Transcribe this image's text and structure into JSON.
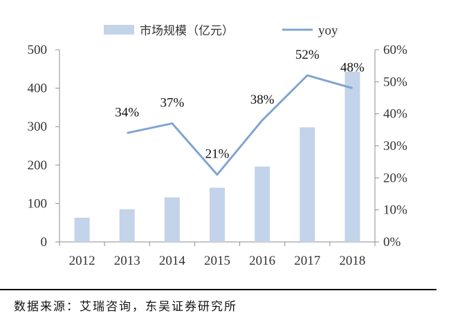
{
  "chart_data": {
    "type": "bar+line",
    "categories": [
      "2012",
      "2013",
      "2014",
      "2015",
      "2016",
      "2017",
      "2018"
    ],
    "series": [
      {
        "name": "市场规模（亿元）",
        "type": "bar",
        "axis": "left",
        "color": "#c3d3ea",
        "values": [
          63,
          85,
          116,
          141,
          196,
          298,
          443
        ]
      },
      {
        "name": "yoy",
        "type": "line",
        "axis": "right",
        "color": "#7fa5d0",
        "values": [
          null,
          34,
          37,
          21,
          38,
          52,
          48
        ],
        "labels": [
          "",
          "34%",
          "37%",
          "21%",
          "38%",
          "52%",
          "48%"
        ]
      }
    ],
    "y_left": {
      "ylim": [
        0,
        500
      ],
      "ticks": [
        "0",
        "100",
        "200",
        "300",
        "400",
        "500"
      ]
    },
    "y_right": {
      "ylim": [
        0,
        60
      ],
      "ticks": [
        "0%",
        "10%",
        "20%",
        "30%",
        "40%",
        "50%",
        "60%"
      ]
    },
    "legend": {
      "position": "top-center",
      "bar_label": "市场规模（亿元）",
      "line_label": "yoy"
    },
    "grid": false
  },
  "source": {
    "text": "数据来源：艾瑞咨询，东吴证券研究所"
  }
}
